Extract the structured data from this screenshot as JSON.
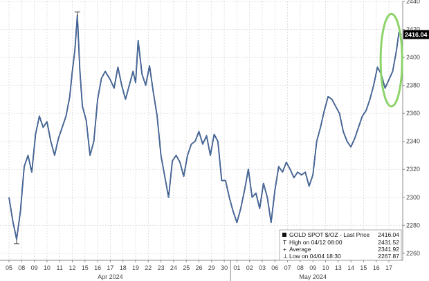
{
  "chart_data": {
    "type": "line",
    "ylim": [
      2255,
      2440
    ],
    "yticks": [
      2260,
      2280,
      2300,
      2320,
      2340,
      2360,
      2380,
      2400,
      2420,
      2440
    ],
    "x_day_labels": [
      "05",
      "08",
      "09",
      "10",
      "11",
      "12",
      "15",
      "16",
      "17",
      "18",
      "19",
      "22",
      "23",
      "24",
      "25",
      "26",
      "29",
      "30",
      "01",
      "02",
      "03",
      "06",
      "07",
      "08",
      "09",
      "10",
      "13",
      "14",
      "15",
      "16",
      "17"
    ],
    "month_labels": [
      {
        "label": "Apr 2024",
        "day_index": 8
      },
      {
        "label": "May 2024",
        "day_index": 24
      }
    ],
    "series": [
      {
        "name": "GOLD SPOT $/OZ",
        "color": "#1f3f73",
        "points": [
          [
            0,
            2300
          ],
          [
            0.3,
            2283
          ],
          [
            0.6,
            2270
          ],
          [
            0.9,
            2290
          ],
          [
            1.2,
            2322
          ],
          [
            1.5,
            2330
          ],
          [
            1.8,
            2318
          ],
          [
            2.1,
            2345
          ],
          [
            2.4,
            2358
          ],
          [
            2.7,
            2350
          ],
          [
            3.0,
            2354
          ],
          [
            3.3,
            2340
          ],
          [
            3.6,
            2330
          ],
          [
            3.9,
            2342
          ],
          [
            4.2,
            2350
          ],
          [
            4.5,
            2358
          ],
          [
            4.8,
            2372
          ],
          [
            5.0,
            2390
          ],
          [
            5.2,
            2405
          ],
          [
            5.4,
            2430
          ],
          [
            5.6,
            2390
          ],
          [
            5.8,
            2365
          ],
          [
            6.1,
            2355
          ],
          [
            6.4,
            2330
          ],
          [
            6.7,
            2340
          ],
          [
            7.0,
            2370
          ],
          [
            7.3,
            2385
          ],
          [
            7.6,
            2390
          ],
          [
            8.0,
            2384
          ],
          [
            8.3,
            2378
          ],
          [
            8.6,
            2393
          ],
          [
            8.9,
            2380
          ],
          [
            9.2,
            2370
          ],
          [
            9.5,
            2380
          ],
          [
            9.8,
            2390
          ],
          [
            10.0,
            2382
          ],
          [
            10.2,
            2412
          ],
          [
            10.5,
            2388
          ],
          [
            10.8,
            2380
          ],
          [
            11.1,
            2394
          ],
          [
            11.4,
            2375
          ],
          [
            11.7,
            2358
          ],
          [
            12.0,
            2330
          ],
          [
            12.3,
            2315
          ],
          [
            12.6,
            2300
          ],
          [
            12.9,
            2326
          ],
          [
            13.2,
            2330
          ],
          [
            13.5,
            2325
          ],
          [
            13.8,
            2315
          ],
          [
            14.1,
            2330
          ],
          [
            14.4,
            2338
          ],
          [
            14.7,
            2340
          ],
          [
            15.0,
            2347
          ],
          [
            15.3,
            2338
          ],
          [
            15.6,
            2344
          ],
          [
            15.9,
            2330
          ],
          [
            16.2,
            2345
          ],
          [
            16.5,
            2340
          ],
          [
            16.8,
            2312
          ],
          [
            17.1,
            2312
          ],
          [
            17.4,
            2300
          ],
          [
            17.7,
            2290
          ],
          [
            18.0,
            2282
          ],
          [
            18.3,
            2292
          ],
          [
            18.6,
            2305
          ],
          [
            18.9,
            2320
          ],
          [
            19.2,
            2300
          ],
          [
            19.5,
            2303
          ],
          [
            19.8,
            2292
          ],
          [
            20.1,
            2310
          ],
          [
            20.4,
            2300
          ],
          [
            20.7,
            2282
          ],
          [
            21.0,
            2305
          ],
          [
            21.3,
            2322
          ],
          [
            21.6,
            2318
          ],
          [
            21.9,
            2325
          ],
          [
            22.2,
            2320
          ],
          [
            22.5,
            2314
          ],
          [
            22.8,
            2318
          ],
          [
            23.1,
            2316
          ],
          [
            23.4,
            2318
          ],
          [
            23.7,
            2308
          ],
          [
            24.0,
            2316
          ],
          [
            24.3,
            2340
          ],
          [
            24.6,
            2350
          ],
          [
            24.9,
            2362
          ],
          [
            25.2,
            2372
          ],
          [
            25.5,
            2370
          ],
          [
            25.8,
            2365
          ],
          [
            26.1,
            2360
          ],
          [
            26.4,
            2347
          ],
          [
            26.7,
            2340
          ],
          [
            27.0,
            2336
          ],
          [
            27.3,
            2342
          ],
          [
            27.6,
            2350
          ],
          [
            27.9,
            2358
          ],
          [
            28.2,
            2362
          ],
          [
            28.5,
            2370
          ],
          [
            28.8,
            2380
          ],
          [
            29.1,
            2393
          ],
          [
            29.4,
            2388
          ],
          [
            29.7,
            2378
          ],
          [
            30.0,
            2384
          ],
          [
            30.3,
            2390
          ],
          [
            30.6,
            2405
          ],
          [
            30.8,
            2418
          ],
          [
            31.0,
            2416
          ]
        ]
      }
    ],
    "last_price": 2416.04,
    "last_price_label": "2416.04",
    "high_marker": {
      "x": 5.4,
      "y": 2431.52
    },
    "low_marker": {
      "x": 0.6,
      "y": 2267.87
    },
    "highlight_ellipse": {
      "x_center": 30.2,
      "y_center": 2398,
      "x_radius": 0.85,
      "y_radius": 33,
      "color": "#8cd46a"
    },
    "legend": {
      "title": "GOLD SPOT $/OZ - Last Price",
      "title_value": "2416.04",
      "rows": [
        {
          "marker": "T",
          "label": "High on 04/12 08:00",
          "value": "2431.52"
        },
        {
          "marker": "+",
          "label": "Average",
          "value": "2341.92"
        },
        {
          "marker": "⊥",
          "label": "Low on 04/04 18:30",
          "value": "2267.87"
        }
      ]
    },
    "grid": true,
    "legend_position": "bottom-right"
  }
}
